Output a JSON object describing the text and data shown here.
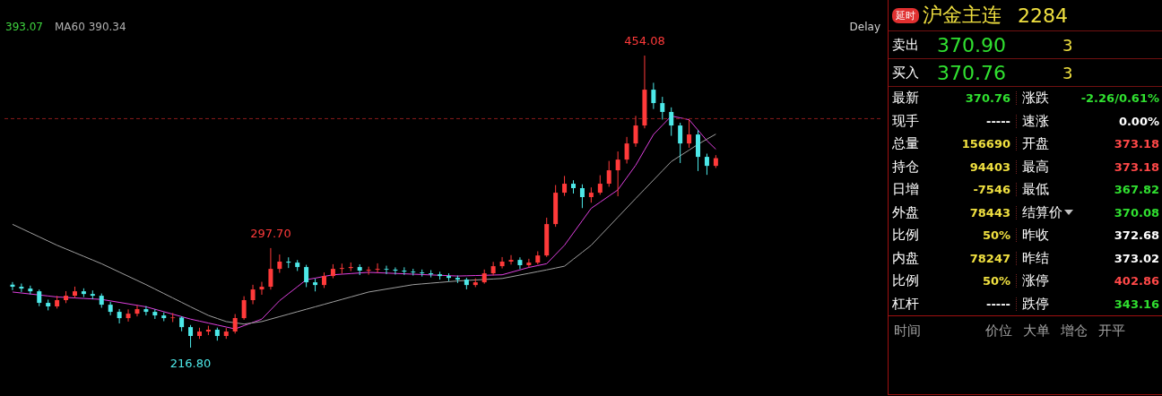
{
  "chart_data": [
    {
      "type": "candlestick",
      "categories": [
        null,
        null,
        null,
        null,
        null,
        null,
        null,
        null,
        null,
        null,
        null,
        null,
        null,
        null,
        null,
        null,
        null,
        null,
        null,
        null,
        null,
        null,
        null,
        null,
        null,
        null,
        null,
        null,
        null,
        null,
        null,
        null,
        null,
        null,
        null,
        null,
        null,
        null,
        null,
        null,
        null,
        null,
        null,
        null,
        null,
        null,
        null,
        null,
        null,
        null,
        null,
        null,
        null,
        null,
        null,
        null,
        null,
        null,
        null,
        null,
        null,
        null,
        null,
        null,
        null,
        null,
        null,
        null,
        null,
        null,
        null,
        null,
        null,
        null,
        null,
        null,
        null,
        null,
        null,
        null
      ],
      "ohlc": [
        [
          268.0,
          270.1,
          263.5,
          266.3
        ],
        [
          266.3,
          268.9,
          262.0,
          264.8
        ],
        [
          264.8,
          267.2,
          260.1,
          262.6
        ],
        [
          262.6,
          264.0,
          250.5,
          253.2
        ],
        [
          253.2,
          255.8,
          247.1,
          250.3
        ],
        [
          250.3,
          258.9,
          248.6,
          255.4
        ],
        [
          255.4,
          262.7,
          253.0,
          259.0
        ],
        [
          259.0,
          266.4,
          257.2,
          262.6
        ],
        [
          262.6,
          265.0,
          257.9,
          260.4
        ],
        [
          260.4,
          263.3,
          256.1,
          259.0
        ],
        [
          259.0,
          260.8,
          249.2,
          251.7
        ],
        [
          251.7,
          254.0,
          243.1,
          245.9
        ],
        [
          245.9,
          248.2,
          236.5,
          240.8
        ],
        [
          240.8,
          247.9,
          238.0,
          244.4
        ],
        [
          244.4,
          251.3,
          242.2,
          248.1
        ],
        [
          248.1,
          250.6,
          243.0,
          245.9
        ],
        [
          245.9,
          248.0,
          240.1,
          243.0
        ],
        [
          243.0,
          245.5,
          238.3,
          240.8
        ],
        [
          240.8,
          244.9,
          237.6,
          241.3
        ],
        [
          241.3,
          242.3,
          230.1,
          233.5
        ],
        [
          233.5,
          235.2,
          216.8,
          226.3
        ],
        [
          226.3,
          233.0,
          223.9,
          229.9
        ],
        [
          229.9,
          234.6,
          227.0,
          231.4
        ],
        [
          231.4,
          233.1,
          222.5,
          226.3
        ],
        [
          226.3,
          232.8,
          224.0,
          229.9
        ],
        [
          229.9,
          244.1,
          228.3,
          240.8
        ],
        [
          240.8,
          258.6,
          239.5,
          255.4
        ],
        [
          255.4,
          267.9,
          252.1,
          264.1
        ],
        [
          264.1,
          270.3,
          259.8,
          266.3
        ],
        [
          266.3,
          297.7,
          264.0,
          280.8
        ],
        [
          280.8,
          292.5,
          277.6,
          286.7
        ],
        [
          286.7,
          290.2,
          281.5,
          285.9
        ],
        [
          285.9,
          288.0,
          279.1,
          282.3
        ],
        [
          282.3,
          284.1,
          266.0,
          269.9
        ],
        [
          269.9,
          272.8,
          262.5,
          267.7
        ],
        [
          267.7,
          277.9,
          265.3,
          275.0
        ],
        [
          275.0,
          284.6,
          273.2,
          280.8
        ],
        [
          280.8,
          285.1,
          276.9,
          281.5
        ],
        [
          281.5,
          286.0,
          279.0,
          282.3
        ],
        [
          282.3,
          284.5,
          275.8,
          279.4
        ],
        [
          279.4,
          282.6,
          276.1,
          280.1
        ],
        [
          280.1,
          285.3,
          277.7,
          280.8
        ],
        [
          280.8,
          283.4,
          276.5,
          280.2
        ],
        [
          280.2,
          282.0,
          276.2,
          279.4
        ],
        [
          279.4,
          282.1,
          275.9,
          278.6
        ],
        [
          278.6,
          280.9,
          275.4,
          277.9
        ],
        [
          277.9,
          280.3,
          274.6,
          277.2
        ],
        [
          277.2,
          279.8,
          273.9,
          276.4
        ],
        [
          276.4,
          278.5,
          272.1,
          275.0
        ],
        [
          275.0,
          277.2,
          270.8,
          273.5
        ],
        [
          273.5,
          275.4,
          269.3,
          272.1
        ],
        [
          272.1,
          273.6,
          264.2,
          267.7
        ],
        [
          267.7,
          273.1,
          266.0,
          269.9
        ],
        [
          269.9,
          280.3,
          268.8,
          277.2
        ],
        [
          277.2,
          286.5,
          275.5,
          283.0
        ],
        [
          283.0,
          290.4,
          281.2,
          286.7
        ],
        [
          286.7,
          292.0,
          284.3,
          288.1
        ],
        [
          288.1,
          290.2,
          280.6,
          283.8
        ],
        [
          283.8,
          289.0,
          282.1,
          285.9
        ],
        [
          285.9,
          295.1,
          284.4,
          291.7
        ],
        [
          291.7,
          322.4,
          290.5,
          317.2
        ],
        [
          317.2,
          348.9,
          315.0,
          342.7
        ],
        [
          342.7,
          356.3,
          340.1,
          350.0
        ],
        [
          350.0,
          352.8,
          342.0,
          346.4
        ],
        [
          346.4,
          349.5,
          330.2,
          339.1
        ],
        [
          339.1,
          347.0,
          334.6,
          342.7
        ],
        [
          342.7,
          356.9,
          341.0,
          350.0
        ],
        [
          350.0,
          368.5,
          347.5,
          360.9
        ],
        [
          360.9,
          376.2,
          339.8,
          369.6
        ],
        [
          369.6,
          388.0,
          366.4,
          382.7
        ],
        [
          382.7,
          405.1,
          380.0,
          397.3
        ],
        [
          397.3,
          454.08,
          395.0,
          426.4
        ],
        [
          426.4,
          432.0,
          410.7,
          415.5
        ],
        [
          415.5,
          420.6,
          402.1,
          408.3
        ],
        [
          408.3,
          412.0,
          388.9,
          397.3
        ],
        [
          397.3,
          399.5,
          366.8,
          382.7
        ],
        [
          382.7,
          402.3,
          379.2,
          390.0
        ],
        [
          390.0,
          393.5,
          360.3,
          371.8
        ],
        [
          371.8,
          374.4,
          357.2,
          364.5
        ],
        [
          364.5,
          373.2,
          362.8,
          370.76
        ]
      ],
      "series": [
        {
          "type": "line",
          "color": "#e040e0",
          "values": [
            262,
            261.2,
            260.4,
            259.6,
            258.8,
            258,
            257.6,
            257.2,
            256.8,
            256.4,
            256,
            254.8,
            253.6,
            252.4,
            251.2,
            250,
            248,
            246,
            244,
            242,
            240,
            238.4,
            236.8,
            235.2,
            233.6,
            232,
            234.7,
            237.3,
            240,
            247.5,
            255,
            260.7,
            266.3,
            272,
            273.3,
            274.7,
            276,
            276.5,
            277,
            277.5,
            278,
            277.7,
            277.4,
            277.1,
            276.8,
            276.5,
            276.2,
            275.9,
            275.6,
            275.3,
            275,
            275.2,
            275.4,
            275.6,
            275.8,
            276,
            278,
            280,
            282,
            283.5,
            285,
            292.5,
            300,
            310,
            320,
            330,
            335,
            340,
            345,
            355,
            365,
            377.5,
            390,
            397.5,
            405,
            403.5,
            402,
            393.5,
            385,
            378
          ]
        },
        {
          "type": "line",
          "color": "#a0a0a0",
          "values": [
            317,
            313.6,
            310.2,
            306.8,
            303.4,
            300,
            297,
            294,
            291,
            288,
            285,
            281.6,
            278.2,
            274.8,
            271.4,
            268,
            264.4,
            260.8,
            257.2,
            253.6,
            250,
            246.5,
            243,
            240.5,
            238,
            237,
            236,
            237,
            238,
            240,
            242,
            244,
            246,
            248,
            250,
            252,
            254,
            256,
            258,
            260,
            262,
            263.2,
            264.4,
            265.6,
            266.8,
            268,
            268.6,
            269.2,
            269.8,
            270.4,
            271,
            271.4,
            271.8,
            272.2,
            272.6,
            273,
            274.4,
            275.8,
            277.2,
            278.6,
            280,
            281.5,
            283,
            288.7,
            294.3,
            300,
            307.6,
            315.2,
            322.8,
            330.4,
            338,
            345.5,
            353,
            360.5,
            368,
            372.7,
            377.3,
            382,
            386.2,
            390.3
          ]
        }
      ],
      "ref_lines": [
        {
          "axis": "y",
          "value": 402.86,
          "color": "#8b1a1a",
          "line_style": "dashed"
        }
      ],
      "annotations": [
        "393.07",
        "MA60 390.34",
        "Delay",
        {
          "text": "454.08",
          "y": 454.08
        },
        {
          "text": "297.70",
          "y": 297.7
        },
        {
          "text": "216.80",
          "y": 216.8
        }
      ],
      "grid": false,
      "legend": false,
      "tick_labels": false
    },
    {
      "type": "other",
      "annotations": [
        "延时",
        "沪金主连",
        "2284",
        "卖出",
        "370.90",
        "3",
        "买入",
        "370.76",
        "3",
        "最新",
        "370.76",
        "涨跌",
        "-2.26/0.61%",
        "现手",
        "-----",
        "速涨",
        "0.00%",
        "总量",
        "156690",
        "开盘",
        "373.18",
        "持仓",
        "94403",
        "最高",
        "373.18",
        "日增",
        "-7546",
        "最低",
        "367.82",
        "外盘",
        "78443",
        "结算价",
        "370.08",
        "比例",
        "50%",
        "昨收",
        "372.68",
        "内盘",
        "78247",
        "昨结",
        "373.02",
        "比例",
        "50%",
        "涨停",
        "402.86",
        "杠杆",
        "-----",
        "跌停",
        "343.16",
        "时间",
        "价位",
        "大单",
        "增仓",
        "开平"
      ]
    }
  ]
}
